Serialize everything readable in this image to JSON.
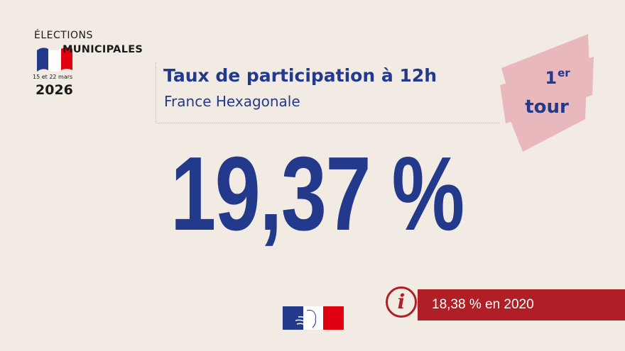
{
  "logo": {
    "line1": "ÉLECTIONS",
    "line2": "MUNICIPALES",
    "dates": "15 et 22 mars",
    "year": "2026",
    "flag_colors": [
      "#233a8c",
      "#ffffff",
      "#e1000f"
    ]
  },
  "header": {
    "title": "Taux de participation à 12h",
    "subtitle": "France Hexagonale"
  },
  "badge": {
    "number": "1",
    "superscript": "er",
    "word": "tour",
    "color": "#e8b8bd"
  },
  "main": {
    "value": "19,37 %"
  },
  "info": {
    "icon": "info-icon",
    "text": "18,38 % en 2020",
    "color": "#b01f25"
  },
  "footer": {
    "emblem": "marianne-logo-icon"
  },
  "colors": {
    "background": "#f2ebe3",
    "primary": "#233a8c",
    "accent": "#b01f25"
  }
}
